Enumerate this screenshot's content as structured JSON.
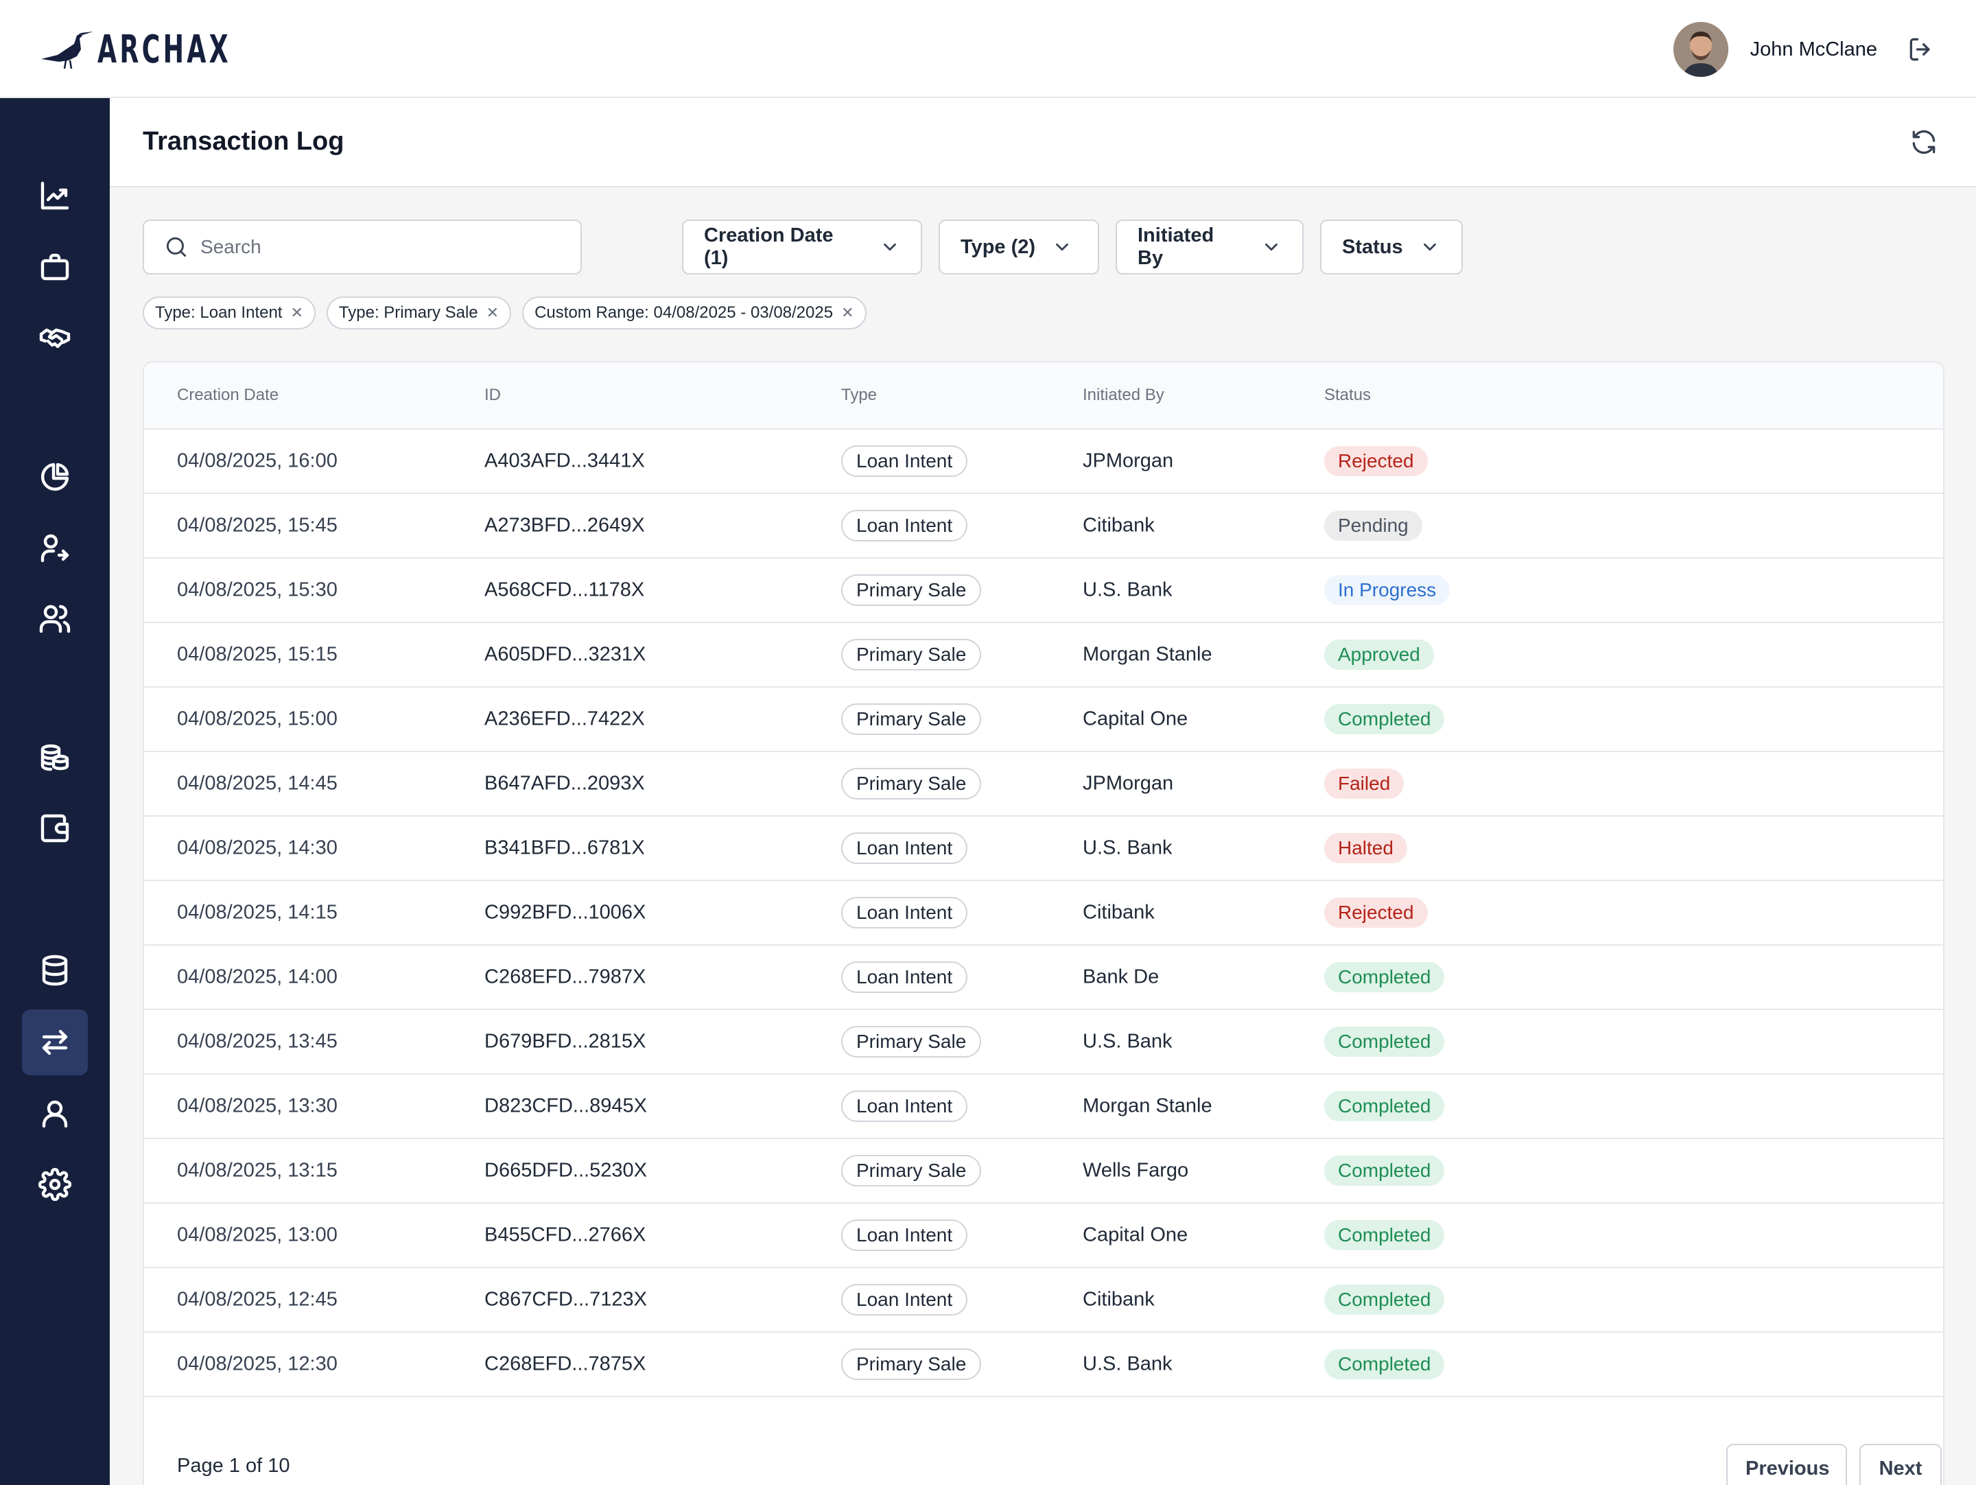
{
  "app": {
    "logo_text": "ARCHAX",
    "user_name": "John McClane"
  },
  "sidebar": {
    "items": [
      {
        "icon": "trending-chart-icon"
      },
      {
        "icon": "briefcase-icon"
      },
      {
        "icon": "handshake-icon"
      },
      {
        "icon": "pie-chart-icon"
      },
      {
        "icon": "user-transfer-icon"
      },
      {
        "icon": "users-icon"
      },
      {
        "icon": "coins-icon"
      },
      {
        "icon": "wallet-icon"
      },
      {
        "icon": "database-icon"
      },
      {
        "icon": "transfer-arrows-icon",
        "active": true
      },
      {
        "icon": "user-icon"
      },
      {
        "icon": "settings-icon"
      }
    ]
  },
  "page": {
    "title": "Transaction Log"
  },
  "search": {
    "placeholder": "Search",
    "value": ""
  },
  "filters": {
    "creation_date": "Creation Date (1)",
    "type": "Type (2)",
    "initiated_by": "Initiated By",
    "status": "Status"
  },
  "chips": [
    {
      "label": "Type: Loan Intent"
    },
    {
      "label": "Type: Primary Sale"
    },
    {
      "label": "Custom Range: 04/08/2025 - 03/08/2025"
    }
  ],
  "table": {
    "headers": {
      "creation_date": "Creation Date",
      "id": "ID",
      "type": "Type",
      "initiated_by": "Initiated By",
      "status": "Status"
    },
    "rows": [
      {
        "date": "04/08/2025, 16:00",
        "id": "A403AFD...3441X",
        "type": "Loan Intent",
        "initiated_by": "JPMorgan",
        "status": "Rejected"
      },
      {
        "date": "04/08/2025, 15:45",
        "id": "A273BFD...2649X",
        "type": "Loan Intent",
        "initiated_by": "Citibank",
        "status": "Pending"
      },
      {
        "date": "04/08/2025, 15:30",
        "id": "A568CFD...1178X",
        "type": "Primary Sale",
        "initiated_by": "U.S. Bank",
        "status": "In Progress"
      },
      {
        "date": "04/08/2025, 15:15",
        "id": "A605DFD...3231X",
        "type": "Primary Sale",
        "initiated_by": "Morgan Stanle",
        "status": "Approved"
      },
      {
        "date": "04/08/2025, 15:00",
        "id": "A236EFD...7422X",
        "type": "Primary Sale",
        "initiated_by": "Capital One",
        "status": "Completed"
      },
      {
        "date": "04/08/2025, 14:45",
        "id": "B647AFD...2093X",
        "type": "Primary Sale",
        "initiated_by": "JPMorgan",
        "status": "Failed"
      },
      {
        "date": "04/08/2025, 14:30",
        "id": "B341BFD...6781X",
        "type": "Loan Intent",
        "initiated_by": "U.S. Bank",
        "status": "Halted"
      },
      {
        "date": "04/08/2025, 14:15",
        "id": "C992BFD...1006X",
        "type": "Loan Intent",
        "initiated_by": "Citibank",
        "status": "Rejected"
      },
      {
        "date": "04/08/2025, 14:00",
        "id": "C268EFD...7987X",
        "type": "Loan Intent",
        "initiated_by": "Bank De",
        "status": "Completed"
      },
      {
        "date": "04/08/2025, 13:45",
        "id": "D679BFD...2815X",
        "type": "Primary Sale",
        "initiated_by": "U.S. Bank",
        "status": "Completed"
      },
      {
        "date": "04/08/2025, 13:30",
        "id": "D823CFD...8945X",
        "type": "Loan Intent",
        "initiated_by": "Morgan Stanle",
        "status": "Completed"
      },
      {
        "date": "04/08/2025, 13:15",
        "id": "D665DFD...5230X",
        "type": "Primary Sale",
        "initiated_by": "Wells Fargo",
        "status": "Completed"
      },
      {
        "date": "04/08/2025, 13:00",
        "id": "B455CFD...2766X",
        "type": "Loan Intent",
        "initiated_by": "Capital One",
        "status": "Completed"
      },
      {
        "date": "04/08/2025, 12:45",
        "id": "C867CFD...7123X",
        "type": "Loan Intent",
        "initiated_by": "Citibank",
        "status": "Completed"
      },
      {
        "date": "04/08/2025, 12:30",
        "id": "C268EFD...7875X",
        "type": "Primary Sale",
        "initiated_by": "U.S. Bank",
        "status": "Completed"
      }
    ]
  },
  "status_colors": {
    "Rejected": "#b42318",
    "Failed": "#b42318",
    "Halted": "#b42318",
    "Pending": "#4b5563",
    "In Progress": "#2d6fcf",
    "Approved": "#1e8e55",
    "Completed": "#1e8e55"
  },
  "pagination": {
    "info": "Page 1 of 10",
    "previous_label": "Previous",
    "next_label": "Next"
  },
  "colors": {
    "sidebar_bg": "#16203d",
    "active_nav_bg": "#2b3a66",
    "page_bg": "#f5f5f6"
  }
}
